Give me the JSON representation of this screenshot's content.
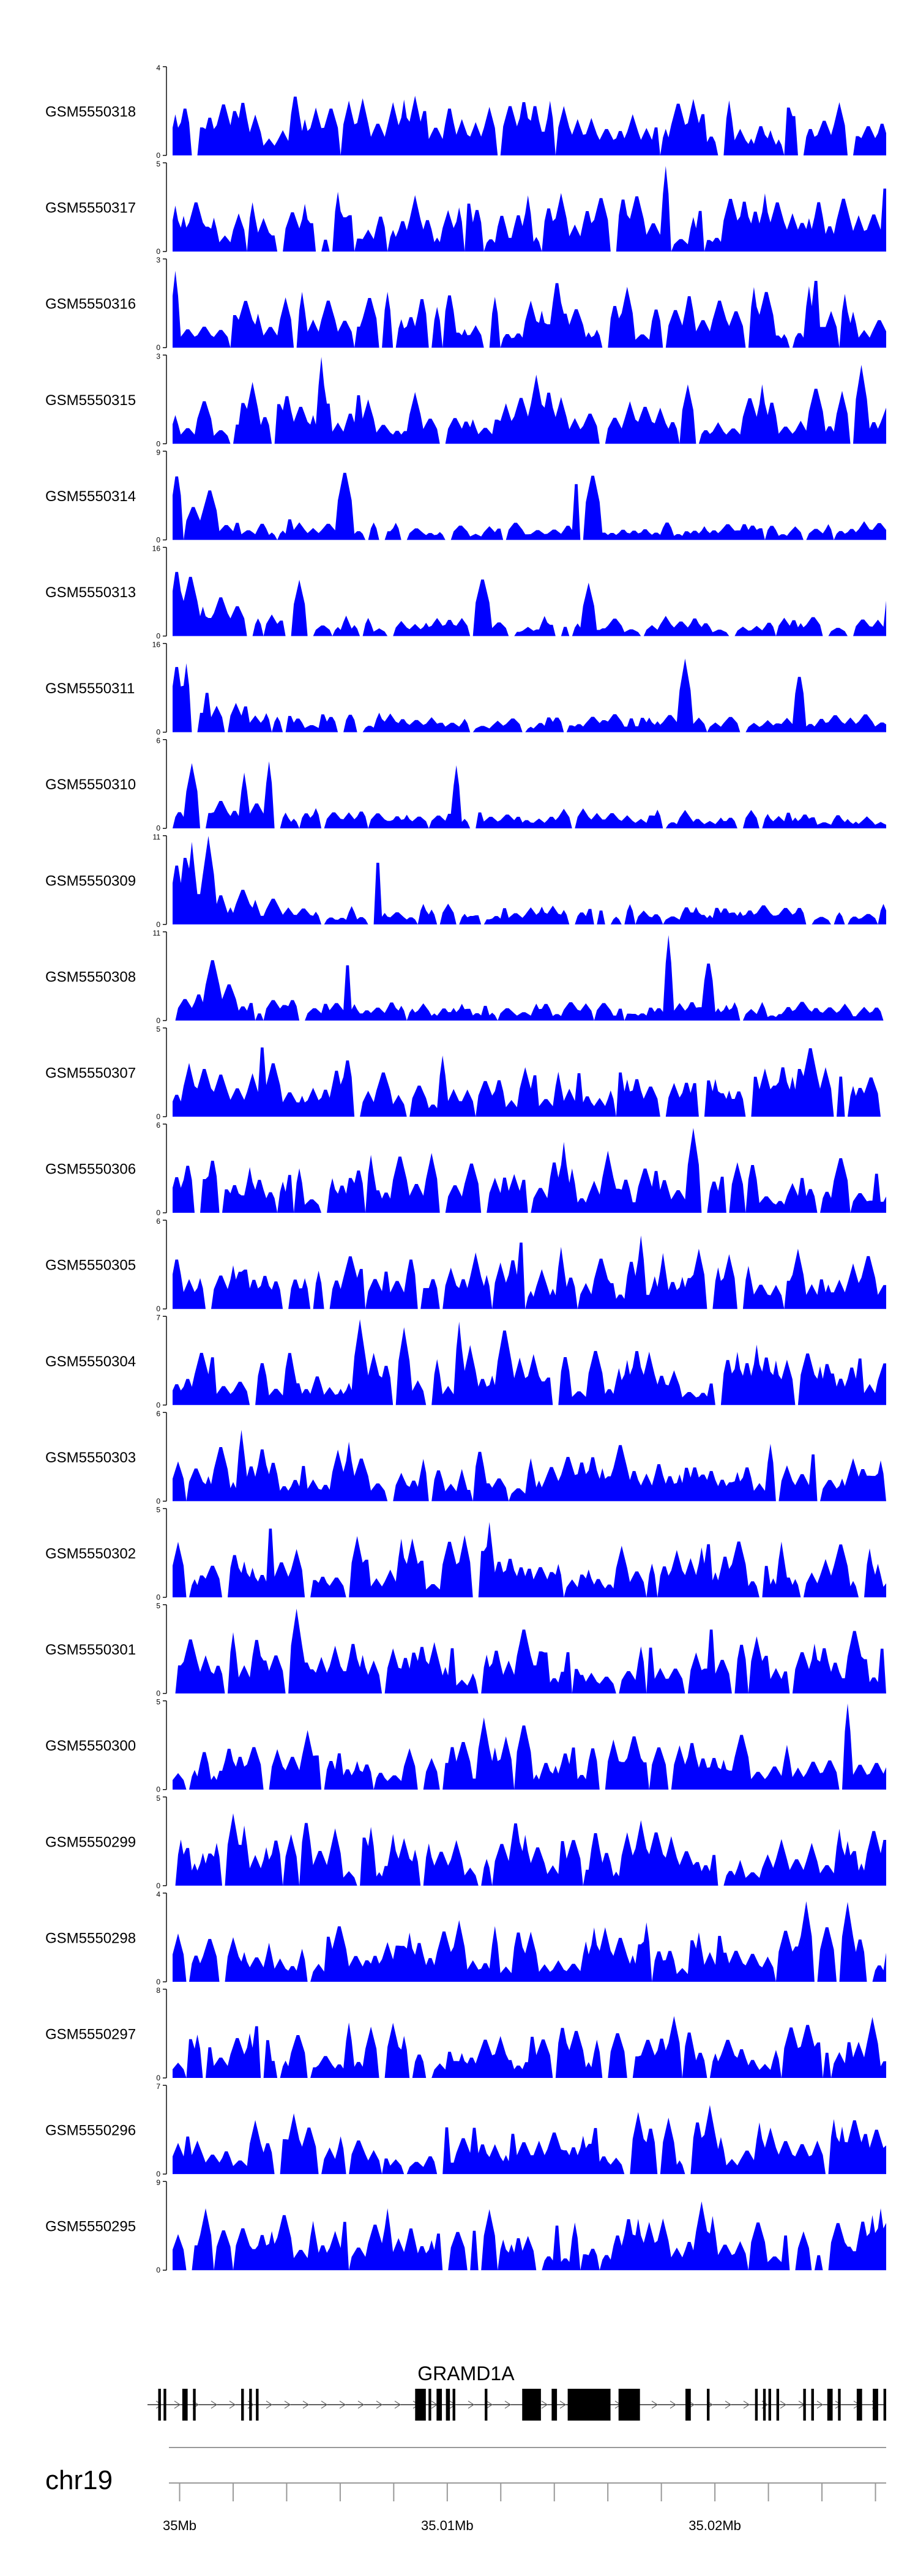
{
  "chart_data": {
    "type": "area",
    "fill_color": "#0000ff",
    "gene_color": "#000000",
    "axis_color": "#000000",
    "tracks": [
      {
        "name": "GSM5550318",
        "ymax": 4,
        "ymin_label": "0",
        "ymax_label": "4",
        "seed": 318,
        "values": []
      },
      {
        "name": "GSM5550317",
        "ymax": 5,
        "ymin_label": "0",
        "ymax_label": "5",
        "seed": 317,
        "values": []
      },
      {
        "name": "GSM5550316",
        "ymax": 3,
        "ymin_label": "0",
        "ymax_label": "3",
        "seed": 316,
        "values": []
      },
      {
        "name": "GSM5550315",
        "ymax": 3,
        "ymin_label": "0",
        "ymax_label": "3",
        "seed": 315,
        "values": []
      },
      {
        "name": "GSM5550314",
        "ymax": 9,
        "ymin_label": "0",
        "ymax_label": "9",
        "seed": 314,
        "values": []
      },
      {
        "name": "GSM5550313",
        "ymax": 16,
        "ymin_label": "0",
        "ymax_label": "16",
        "seed": 313,
        "values": []
      },
      {
        "name": "GSM5550311",
        "ymax": 16,
        "ymin_label": "0",
        "ymax_label": "16",
        "seed": 311,
        "values": []
      },
      {
        "name": "GSM5550310",
        "ymax": 6,
        "ymin_label": "0",
        "ymax_label": "6",
        "seed": 310,
        "values": []
      },
      {
        "name": "GSM5550309",
        "ymax": 11,
        "ymin_label": "0",
        "ymax_label": "11",
        "seed": 309,
        "values": []
      },
      {
        "name": "GSM5550308",
        "ymax": 11,
        "ymin_label": "0",
        "ymax_label": "11",
        "seed": 308,
        "values": []
      },
      {
        "name": "GSM5550307",
        "ymax": 5,
        "ymin_label": "0",
        "ymax_label": "5",
        "seed": 307,
        "values": []
      },
      {
        "name": "GSM5550306",
        "ymax": 6,
        "ymin_label": "0",
        "ymax_label": "6",
        "seed": 306,
        "values": []
      },
      {
        "name": "GSM5550305",
        "ymax": 6,
        "ymin_label": "0",
        "ymax_label": "6",
        "seed": 305,
        "values": []
      },
      {
        "name": "GSM5550304",
        "ymax": 7,
        "ymin_label": "0",
        "ymax_label": "7",
        "seed": 304,
        "values": []
      },
      {
        "name": "GSM5550303",
        "ymax": 6,
        "ymin_label": "0",
        "ymax_label": "6",
        "seed": 303,
        "values": []
      },
      {
        "name": "GSM5550302",
        "ymax": 5,
        "ymin_label": "0",
        "ymax_label": "5",
        "seed": 302,
        "values": []
      },
      {
        "name": "GSM5550301",
        "ymax": 5,
        "ymin_label": "0",
        "ymax_label": "5",
        "seed": 301,
        "values": []
      },
      {
        "name": "GSM5550300",
        "ymax": 5,
        "ymin_label": "0",
        "ymax_label": "5",
        "seed": 300,
        "values": []
      },
      {
        "name": "GSM5550299",
        "ymax": 5,
        "ymin_label": "0",
        "ymax_label": "5",
        "seed": 299,
        "values": []
      },
      {
        "name": "GSM5550298",
        "ymax": 4,
        "ymin_label": "0",
        "ymax_label": "4",
        "seed": 298,
        "values": []
      },
      {
        "name": "GSM5550297",
        "ymax": 8,
        "ymin_label": "0",
        "ymax_label": "8",
        "seed": 297,
        "values": []
      },
      {
        "name": "GSM5550296",
        "ymax": 7,
        "ymin_label": "0",
        "ymax_label": "7",
        "seed": 296,
        "values": []
      },
      {
        "name": "GSM5550295",
        "ymax": 9,
        "ymin_label": "0",
        "ymax_label": "9",
        "seed": 295,
        "values": []
      }
    ],
    "gene": {
      "name": "GRAMD1A",
      "strand": "+",
      "exons": [
        [
          34999.2,
          34999.3
        ],
        [
          34999.4,
          34999.5
        ],
        [
          35000.1,
          35000.3
        ],
        [
          35000.5,
          35000.6
        ],
        [
          35002.3,
          35002.4
        ],
        [
          35002.6,
          35002.7
        ],
        [
          35002.85,
          35002.95
        ],
        [
          35008.8,
          35009.2
        ],
        [
          35009.3,
          35009.4
        ],
        [
          35009.6,
          35009.8
        ],
        [
          35009.95,
          35010.1
        ],
        [
          35010.2,
          35010.3
        ],
        [
          35011.4,
          35011.5
        ],
        [
          35012.8,
          35013.5
        ],
        [
          35013.9,
          35014.1
        ],
        [
          35014.5,
          35016.1
        ],
        [
          35016.4,
          35017.2
        ],
        [
          35018.9,
          35019.1
        ],
        [
          35019.7,
          35019.8
        ],
        [
          35021.5,
          35021.6
        ],
        [
          35021.8,
          35021.9
        ],
        [
          35022.0,
          35022.1
        ],
        [
          35022.3,
          35022.4
        ],
        [
          35023.3,
          35023.4
        ],
        [
          35023.6,
          35023.7
        ],
        [
          35024.2,
          35024.4
        ],
        [
          35024.6,
          35024.7
        ],
        [
          35025.3,
          35025.5
        ],
        [
          35025.9,
          35026.1
        ],
        [
          35026.3,
          35026.4
        ]
      ],
      "range": [
        34998.8,
        35026.4
      ]
    },
    "axis": {
      "chromosome": "chr19",
      "xlim": [
        34999.6,
        35026.4
      ],
      "minor_tick_step": 2,
      "major_ticks": [
        {
          "value": 35000,
          "label": "35Mb"
        },
        {
          "value": 35010,
          "label": "35.01Mb"
        },
        {
          "value": 35020,
          "label": "35.02Mb"
        }
      ]
    }
  }
}
